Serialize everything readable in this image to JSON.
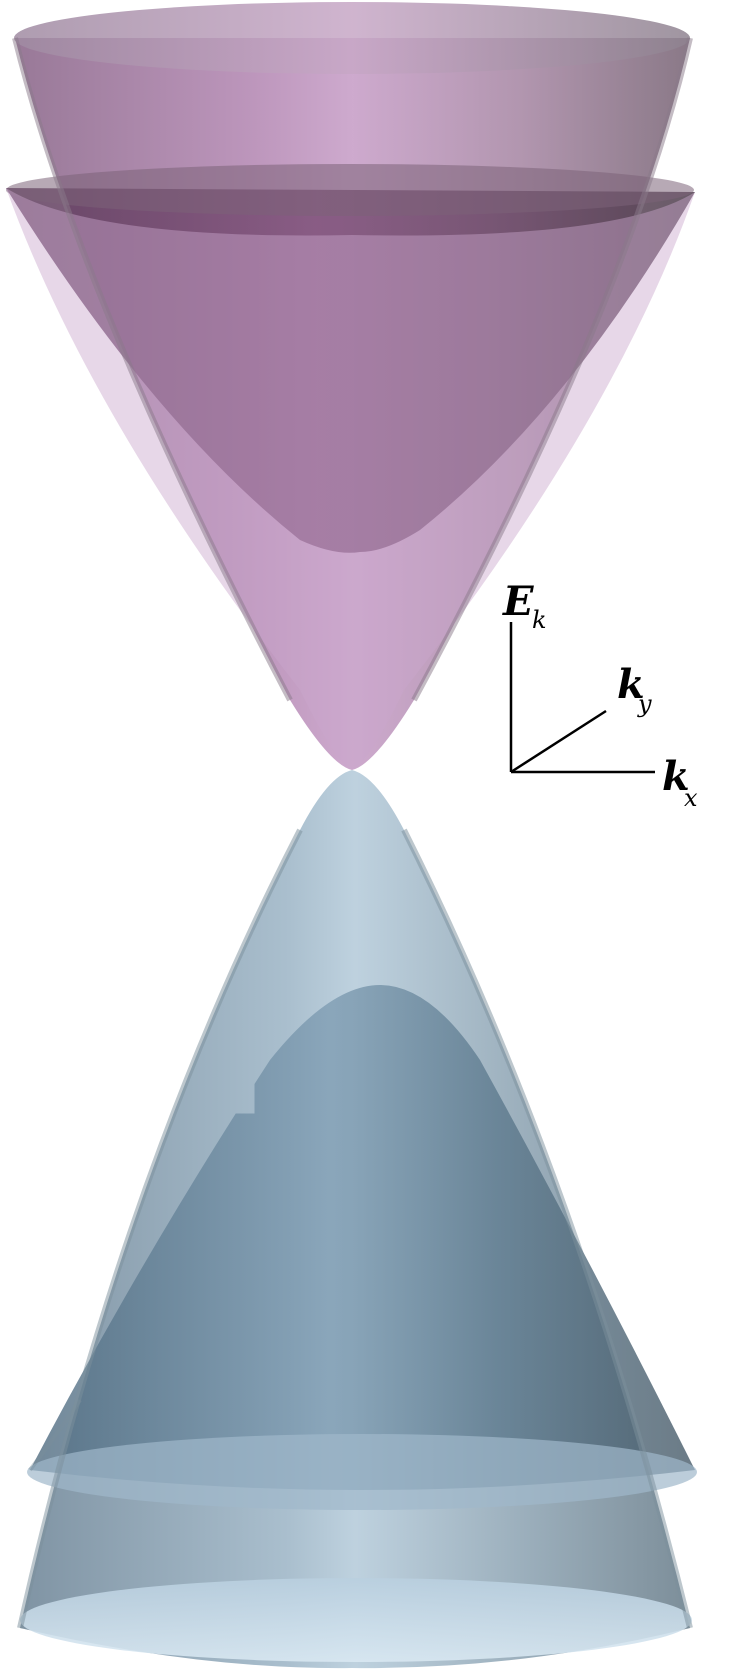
{
  "axes": {
    "energy": {
      "symbol": "E",
      "subscript": "k"
    },
    "ky": {
      "symbol": "k",
      "subscript": "y"
    },
    "kx": {
      "symbol": "k",
      "subscript": "x"
    }
  },
  "colors": {
    "conduction_band": "#c9a6cc",
    "conduction_band_dark": "#7a4f78",
    "valence_band": "#b7cde0",
    "valence_band_dark": "#5d7a8e",
    "axis_line": "#000000"
  },
  "bands": [
    {
      "name": "",
      "kind": "conduction",
      "count": 2
    },
    {
      "name": "",
      "kind": "valence",
      "count": 2
    }
  ]
}
